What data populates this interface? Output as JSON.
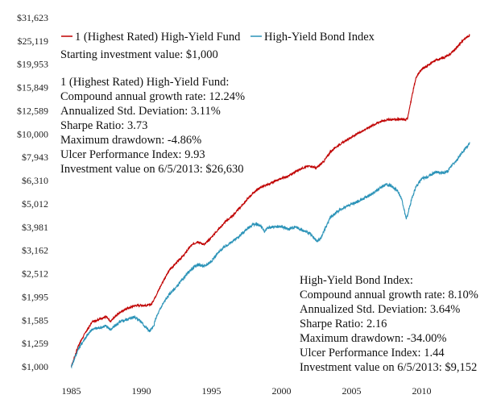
{
  "chart_data": {
    "type": "line",
    "y_scale": "log",
    "ylim": [
      1000,
      31623
    ],
    "xlim": [
      1985,
      2013.9
    ],
    "y_ticks": [
      "$1,000",
      "$1,259",
      "$1,585",
      "$1,995",
      "$2,512",
      "$3,162",
      "$3,981",
      "$5,012",
      "$6,310",
      "$7,943",
      "$10,000",
      "$12,589",
      "$15,849",
      "$19,953",
      "$25,119",
      "$31,623"
    ],
    "y_tick_values": [
      1000,
      1259,
      1585,
      1995,
      2512,
      3162,
      3981,
      5012,
      6310,
      7943,
      10000,
      12589,
      15849,
      19953,
      25119,
      31623
    ],
    "x_ticks": [
      "1985",
      "1990",
      "1995",
      "2000",
      "2005",
      "2010"
    ],
    "x_tick_values": [
      1985,
      1990,
      1995,
      2000,
      2005,
      2010
    ],
    "grid": false,
    "legend_position": "top-left",
    "series": [
      {
        "name": "1 (Highest Rated) High-Yield Fund",
        "color": "#c00000",
        "points": [
          [
            1985.0,
            1000
          ],
          [
            1985.5,
            1230
          ],
          [
            1986.0,
            1400
          ],
          [
            1986.5,
            1560
          ],
          [
            1987.0,
            1600
          ],
          [
            1987.5,
            1640
          ],
          [
            1987.8,
            1560
          ],
          [
            1988.0,
            1620
          ],
          [
            1988.5,
            1720
          ],
          [
            1989.0,
            1780
          ],
          [
            1989.5,
            1830
          ],
          [
            1990.0,
            1840
          ],
          [
            1990.3,
            1830
          ],
          [
            1990.7,
            1850
          ],
          [
            1991.0,
            2000
          ],
          [
            1991.5,
            2300
          ],
          [
            1992.0,
            2600
          ],
          [
            1992.5,
            2800
          ],
          [
            1993.0,
            3000
          ],
          [
            1993.5,
            3300
          ],
          [
            1994.0,
            3450
          ],
          [
            1994.5,
            3350
          ],
          [
            1995.0,
            3600
          ],
          [
            1995.5,
            3900
          ],
          [
            1996.0,
            4200
          ],
          [
            1996.5,
            4450
          ],
          [
            1997.0,
            4800
          ],
          [
            1997.5,
            5200
          ],
          [
            1998.0,
            5600
          ],
          [
            1998.5,
            5900
          ],
          [
            1999.0,
            6050
          ],
          [
            1999.5,
            6250
          ],
          [
            2000.0,
            6450
          ],
          [
            2000.5,
            6600
          ],
          [
            2001.0,
            6900
          ],
          [
            2001.5,
            7150
          ],
          [
            2002.0,
            7300
          ],
          [
            2002.5,
            7150
          ],
          [
            2003.0,
            7600
          ],
          [
            2003.5,
            8400
          ],
          [
            2004.0,
            8900
          ],
          [
            2004.5,
            9300
          ],
          [
            2005.0,
            9700
          ],
          [
            2005.5,
            10100
          ],
          [
            2006.0,
            10500
          ],
          [
            2006.5,
            10900
          ],
          [
            2007.0,
            11300
          ],
          [
            2007.5,
            11500
          ],
          [
            2008.0,
            11550
          ],
          [
            2008.5,
            11600
          ],
          [
            2008.8,
            11500
          ],
          [
            2009.0,
            11700
          ],
          [
            2009.3,
            14500
          ],
          [
            2009.6,
            17500
          ],
          [
            2010.0,
            19000
          ],
          [
            2010.5,
            19800
          ],
          [
            2011.0,
            20800
          ],
          [
            2011.5,
            21200
          ],
          [
            2012.0,
            22000
          ],
          [
            2012.5,
            23500
          ],
          [
            2013.0,
            25500
          ],
          [
            2013.43,
            26630
          ]
        ]
      },
      {
        "name": "High-Yield Bond Index",
        "color": "#2b93b8",
        "points": [
          [
            1985.0,
            1000
          ],
          [
            1985.5,
            1190
          ],
          [
            1986.0,
            1330
          ],
          [
            1986.5,
            1450
          ],
          [
            1987.0,
            1470
          ],
          [
            1987.5,
            1500
          ],
          [
            1987.8,
            1440
          ],
          [
            1988.0,
            1480
          ],
          [
            1988.5,
            1560
          ],
          [
            1989.0,
            1600
          ],
          [
            1989.5,
            1640
          ],
          [
            1989.9,
            1580
          ],
          [
            1990.3,
            1480
          ],
          [
            1990.6,
            1420
          ],
          [
            1990.9,
            1500
          ],
          [
            1991.0,
            1600
          ],
          [
            1991.5,
            1850
          ],
          [
            1992.0,
            2050
          ],
          [
            1992.5,
            2200
          ],
          [
            1993.0,
            2400
          ],
          [
            1993.5,
            2600
          ],
          [
            1994.0,
            2750
          ],
          [
            1994.5,
            2700
          ],
          [
            1995.0,
            2850
          ],
          [
            1995.5,
            3100
          ],
          [
            1996.0,
            3300
          ],
          [
            1996.5,
            3450
          ],
          [
            1997.0,
            3650
          ],
          [
            1997.5,
            3900
          ],
          [
            1998.0,
            4100
          ],
          [
            1998.5,
            4050
          ],
          [
            1998.8,
            3800
          ],
          [
            1999.0,
            3950
          ],
          [
            1999.5,
            4000
          ],
          [
            2000.0,
            4000
          ],
          [
            2000.5,
            3900
          ],
          [
            2001.0,
            4000
          ],
          [
            2001.5,
            3850
          ],
          [
            2002.0,
            3750
          ],
          [
            2002.5,
            3450
          ],
          [
            2002.8,
            3550
          ],
          [
            2003.0,
            3800
          ],
          [
            2003.5,
            4400
          ],
          [
            2004.0,
            4650
          ],
          [
            2004.5,
            4850
          ],
          [
            2005.0,
            5000
          ],
          [
            2005.5,
            5150
          ],
          [
            2006.0,
            5350
          ],
          [
            2006.5,
            5550
          ],
          [
            2007.0,
            5850
          ],
          [
            2007.5,
            6100
          ],
          [
            2007.9,
            5950
          ],
          [
            2008.3,
            5700
          ],
          [
            2008.6,
            5200
          ],
          [
            2008.9,
            4300
          ],
          [
            2009.0,
            4500
          ],
          [
            2009.3,
            5300
          ],
          [
            2009.6,
            5950
          ],
          [
            2010.0,
            6400
          ],
          [
            2010.5,
            6600
          ],
          [
            2011.0,
            6900
          ],
          [
            2011.5,
            6800
          ],
          [
            2011.9,
            6900
          ],
          [
            2012.0,
            7200
          ],
          [
            2012.5,
            7700
          ],
          [
            2013.0,
            8500
          ],
          [
            2013.43,
            9152
          ]
        ]
      }
    ]
  },
  "notes": {
    "starting": "Starting investment value: $1,000",
    "fund_lines": [
      "1 (Highest Rated) High-Yield Fund:",
      "Compound annual growth rate: 12.24%",
      "Annualized Std. Deviation: 3.11%",
      "Sharpe Ratio: 3.73",
      "Maximum drawdown: -4.86%",
      "Ulcer Performance Index: 9.93",
      "Investment value on 6/5/2013: $26,630"
    ],
    "index_lines": [
      "High-Yield Bond Index:",
      "Compound annual growth rate: 8.10%",
      "Annualized Std. Deviation: 3.64%",
      "Sharpe Ratio: 2.16",
      "Maximum drawdown: -34.00%",
      "Ulcer Performance Index: 1.44",
      "Investment value on 6/5/2013: $9,152"
    ]
  }
}
